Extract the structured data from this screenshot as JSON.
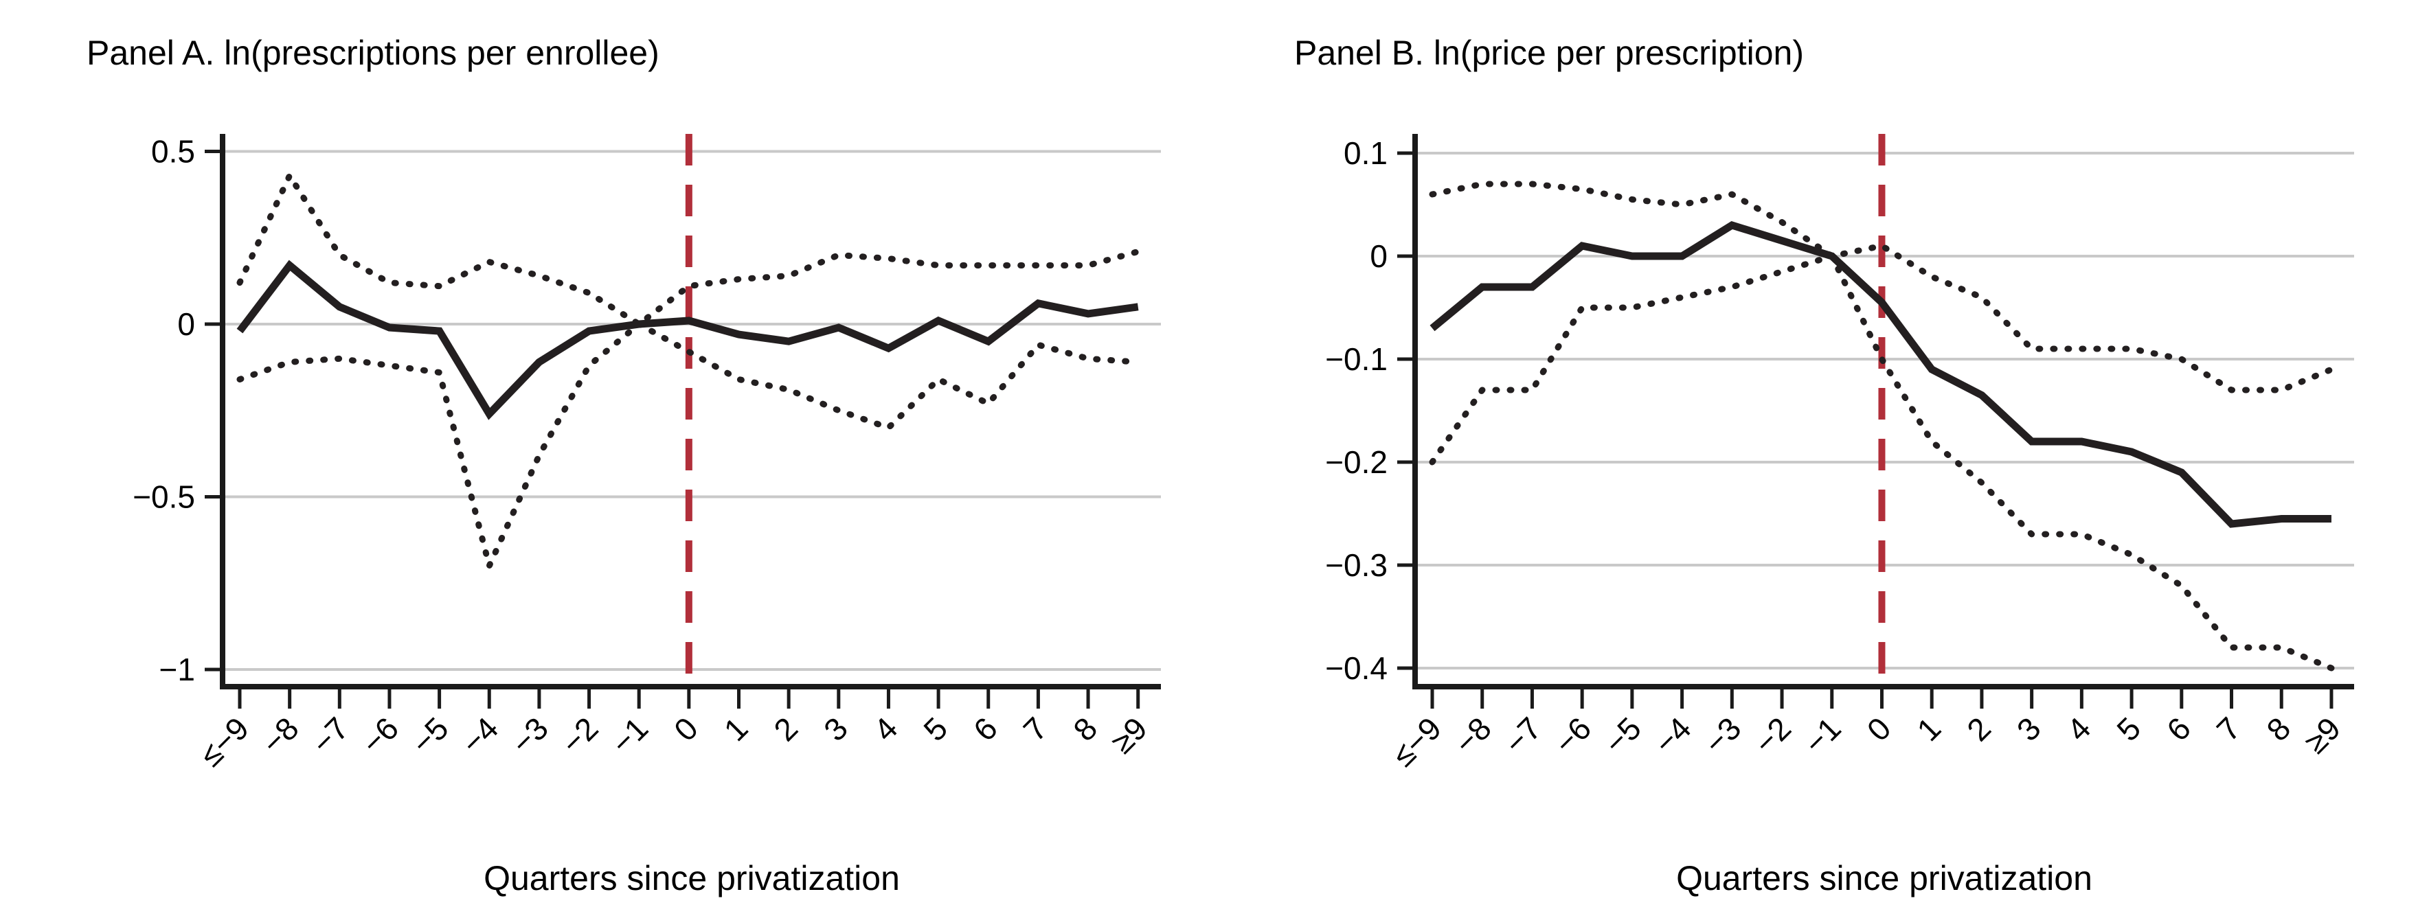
{
  "figure": {
    "description": "Two-panel event-study line chart",
    "background": "#ffffff"
  },
  "colors": {
    "line": "#231f20",
    "grid": "#c9c9c9",
    "reference_line": "#b12f3a",
    "background": "#ffffff",
    "text": "#000000"
  },
  "chart_data": [
    {
      "type": "line",
      "panel": "A",
      "title": "Panel A. ln(prescriptions per enrollee)",
      "xlabel": "Quarters since privatization",
      "ylabel": "",
      "categories": [
        "≤−9",
        "−8",
        "−7",
        "−6",
        "−5",
        "−4",
        "−3",
        "−2",
        "−1",
        "0",
        "1",
        "2",
        "3",
        "4",
        "5",
        "6",
        "7",
        "8",
        "≥9"
      ],
      "ylim": [
        -1.05,
        0.55
      ],
      "yticks": [
        0.5,
        0,
        -0.5,
        -1
      ],
      "ytick_labels": [
        "0.5",
        "0",
        "−0.5",
        "−1"
      ],
      "grid": true,
      "legend": "none",
      "reference_line_x": "0",
      "series": [
        {
          "name": "ci-upper",
          "style": "dotted",
          "values": [
            0.12,
            0.43,
            0.2,
            0.12,
            0.11,
            0.18,
            0.14,
            0.09,
            0.0,
            0.11,
            0.13,
            0.14,
            0.2,
            0.19,
            0.17,
            0.17,
            0.17,
            0.17,
            0.21
          ]
        },
        {
          "name": "ci-lower",
          "style": "dotted",
          "values": [
            -0.16,
            -0.11,
            -0.1,
            -0.12,
            -0.14,
            -0.7,
            -0.38,
            -0.12,
            0.0,
            -0.08,
            -0.16,
            -0.19,
            -0.25,
            -0.3,
            -0.16,
            -0.23,
            -0.06,
            -0.1,
            -0.11
          ]
        },
        {
          "name": "coefficient",
          "style": "solid",
          "values": [
            -0.02,
            0.17,
            0.05,
            -0.01,
            -0.02,
            -0.26,
            -0.11,
            -0.02,
            0.0,
            0.01,
            -0.03,
            -0.05,
            -0.01,
            -0.07,
            0.01,
            -0.05,
            0.06,
            0.03,
            0.05
          ]
        }
      ]
    },
    {
      "type": "line",
      "panel": "B",
      "title": "Panel B. ln(price per prescription)",
      "xlabel": "Quarters since privatization",
      "ylabel": "",
      "categories": [
        "≤−9",
        "−8",
        "−7",
        "−6",
        "−5",
        "−4",
        "−3",
        "−2",
        "−1",
        "0",
        "1",
        "2",
        "3",
        "4",
        "5",
        "6",
        "7",
        "8",
        "≥9"
      ],
      "ylim": [
        -0.42,
        0.12
      ],
      "yticks": [
        0.1,
        0,
        -0.1,
        -0.2,
        -0.3,
        -0.4
      ],
      "ytick_labels": [
        "0.1",
        "0",
        "−0.1",
        "−0.2",
        "−0.3",
        "−0.4"
      ],
      "grid": true,
      "legend": "none",
      "reference_line_x": "0",
      "series": [
        {
          "name": "ci-upper",
          "style": "dotted",
          "values": [
            0.06,
            0.07,
            0.07,
            0.065,
            0.055,
            0.05,
            0.06,
            0.033,
            0.0,
            0.01,
            -0.02,
            -0.04,
            -0.09,
            -0.09,
            -0.09,
            -0.1,
            -0.13,
            -0.13,
            -0.11
          ]
        },
        {
          "name": "ci-lower",
          "style": "dotted",
          "values": [
            -0.2,
            -0.13,
            -0.13,
            -0.05,
            -0.05,
            -0.04,
            -0.03,
            -0.015,
            0.0,
            -0.1,
            -0.18,
            -0.22,
            -0.27,
            -0.27,
            -0.29,
            -0.32,
            -0.38,
            -0.38,
            -0.4
          ]
        },
        {
          "name": "coefficient",
          "style": "solid",
          "values": [
            -0.07,
            -0.03,
            -0.03,
            0.01,
            0.0,
            0.0,
            0.03,
            0.015,
            0.0,
            -0.045,
            -0.11,
            -0.135,
            -0.18,
            -0.18,
            -0.19,
            -0.21,
            -0.26,
            -0.255,
            -0.255
          ]
        }
      ]
    }
  ]
}
